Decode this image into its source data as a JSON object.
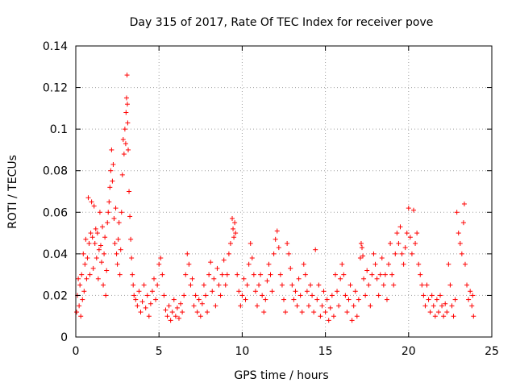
{
  "chart_data": {
    "type": "scatter",
    "title": "Day 315 of 2017, Rate Of TEC Index for receiver pove",
    "xlabel": "GPS time / hours",
    "ylabel": "ROTI / TECUs",
    "xlim": [
      0,
      25
    ],
    "ylim": [
      0,
      0.14
    ],
    "xticks": [
      "0",
      "5",
      "10",
      "15",
      "20",
      "25"
    ],
    "yticks": [
      "0",
      "0.02",
      "0.04",
      "0.06",
      "0.08",
      "0.1",
      "0.12",
      "0.14"
    ],
    "grid": true,
    "marker": "+",
    "color": "#ff0000",
    "series": [
      {
        "points": [
          [
            0.05,
            0.012
          ],
          [
            0.1,
            0.02
          ],
          [
            0.15,
            0.028
          ],
          [
            0.2,
            0.015
          ],
          [
            0.25,
            0.025
          ],
          [
            0.3,
            0.01
          ],
          [
            0.35,
            0.03
          ],
          [
            0.4,
            0.018
          ],
          [
            0.45,
            0.04
          ],
          [
            0.5,
            0.022
          ],
          [
            0.55,
            0.035
          ],
          [
            0.6,
            0.047
          ],
          [
            0.65,
            0.028
          ],
          [
            0.7,
            0.038
          ],
          [
            0.75,
            0.067
          ],
          [
            0.8,
            0.045
          ],
          [
            0.85,
            0.03
          ],
          [
            0.9,
            0.05
          ],
          [
            0.95,
            0.065
          ],
          [
            1.0,
            0.048
          ],
          [
            1.05,
            0.033
          ],
          [
            1.1,
            0.063
          ],
          [
            1.15,
            0.045
          ],
          [
            1.2,
            0.052
          ],
          [
            1.25,
            0.038
          ],
          [
            1.3,
            0.05
          ],
          [
            1.35,
            0.028
          ],
          [
            1.4,
            0.042
          ],
          [
            1.45,
            0.06
          ],
          [
            1.5,
            0.044
          ],
          [
            1.55,
            0.036
          ],
          [
            1.6,
            0.053
          ],
          [
            1.65,
            0.025
          ],
          [
            1.7,
            0.04
          ],
          [
            1.75,
            0.048
          ],
          [
            1.8,
            0.02
          ],
          [
            1.85,
            0.032
          ],
          [
            1.9,
            0.055
          ],
          [
            1.95,
            0.06
          ],
          [
            2.0,
            0.065
          ],
          [
            2.05,
            0.072
          ],
          [
            2.1,
            0.08
          ],
          [
            2.15,
            0.09
          ],
          [
            2.2,
            0.075
          ],
          [
            2.25,
            0.083
          ],
          [
            2.3,
            0.057
          ],
          [
            2.35,
            0.045
          ],
          [
            2.4,
            0.062
          ],
          [
            2.45,
            0.04
          ],
          [
            2.5,
            0.035
          ],
          [
            2.55,
            0.047
          ],
          [
            2.6,
            0.055
          ],
          [
            2.65,
            0.03
          ],
          [
            2.7,
            0.042
          ],
          [
            2.75,
            0.06
          ],
          [
            2.8,
            0.078
          ],
          [
            2.85,
            0.095
          ],
          [
            2.9,
            0.088
          ],
          [
            2.95,
            0.1
          ],
          [
            3.0,
            0.093
          ],
          [
            3.02,
            0.108
          ],
          [
            3.05,
            0.115
          ],
          [
            3.08,
            0.126
          ],
          [
            3.1,
            0.112
          ],
          [
            3.12,
            0.103
          ],
          [
            3.15,
            0.09
          ],
          [
            3.2,
            0.07
          ],
          [
            3.25,
            0.058
          ],
          [
            3.3,
            0.047
          ],
          [
            3.35,
            0.038
          ],
          [
            3.4,
            0.03
          ],
          [
            3.45,
            0.025
          ],
          [
            3.5,
            0.02
          ],
          [
            3.6,
            0.018
          ],
          [
            3.7,
            0.015
          ],
          [
            3.8,
            0.022
          ],
          [
            3.9,
            0.012
          ],
          [
            4.0,
            0.017
          ],
          [
            4.1,
            0.025
          ],
          [
            4.2,
            0.014
          ],
          [
            4.3,
            0.02
          ],
          [
            4.4,
            0.01
          ],
          [
            4.5,
            0.016
          ],
          [
            4.6,
            0.022
          ],
          [
            4.7,
            0.028
          ],
          [
            4.8,
            0.018
          ],
          [
            4.9,
            0.025
          ],
          [
            5.0,
            0.035
          ],
          [
            5.1,
            0.038
          ],
          [
            5.2,
            0.03
          ],
          [
            5.3,
            0.02
          ],
          [
            5.4,
            0.013
          ],
          [
            5.5,
            0.01
          ],
          [
            5.6,
            0.015
          ],
          [
            5.7,
            0.008
          ],
          [
            5.8,
            0.012
          ],
          [
            5.9,
            0.018
          ],
          [
            6.0,
            0.01
          ],
          [
            6.1,
            0.014
          ],
          [
            6.2,
            0.009
          ],
          [
            6.3,
            0.016
          ],
          [
            6.4,
            0.012
          ],
          [
            6.5,
            0.02
          ],
          [
            6.6,
            0.03
          ],
          [
            6.7,
            0.04
          ],
          [
            6.8,
            0.035
          ],
          [
            6.9,
            0.025
          ],
          [
            7.0,
            0.028
          ],
          [
            7.1,
            0.015
          ],
          [
            7.2,
            0.02
          ],
          [
            7.3,
            0.012
          ],
          [
            7.4,
            0.018
          ],
          [
            7.5,
            0.01
          ],
          [
            7.6,
            0.016
          ],
          [
            7.7,
            0.025
          ],
          [
            7.8,
            0.02
          ],
          [
            7.9,
            0.012
          ],
          [
            8.0,
            0.03
          ],
          [
            8.1,
            0.036
          ],
          [
            8.2,
            0.022
          ],
          [
            8.3,
            0.028
          ],
          [
            8.4,
            0.015
          ],
          [
            8.5,
            0.033
          ],
          [
            8.6,
            0.025
          ],
          [
            8.7,
            0.02
          ],
          [
            8.8,
            0.03
          ],
          [
            8.9,
            0.037
          ],
          [
            9.0,
            0.025
          ],
          [
            9.1,
            0.03
          ],
          [
            9.2,
            0.04
          ],
          [
            9.3,
            0.045
          ],
          [
            9.4,
            0.057
          ],
          [
            9.45,
            0.052
          ],
          [
            9.5,
            0.048
          ],
          [
            9.55,
            0.055
          ],
          [
            9.6,
            0.05
          ],
          [
            9.7,
            0.03
          ],
          [
            9.8,
            0.022
          ],
          [
            9.9,
            0.015
          ],
          [
            10.0,
            0.02
          ],
          [
            10.1,
            0.028
          ],
          [
            10.2,
            0.018
          ],
          [
            10.3,
            0.025
          ],
          [
            10.4,
            0.035
          ],
          [
            10.5,
            0.045
          ],
          [
            10.6,
            0.038
          ],
          [
            10.7,
            0.03
          ],
          [
            10.8,
            0.022
          ],
          [
            10.9,
            0.015
          ],
          [
            11.0,
            0.025
          ],
          [
            11.1,
            0.03
          ],
          [
            11.2,
            0.02
          ],
          [
            11.3,
            0.012
          ],
          [
            11.4,
            0.018
          ],
          [
            11.5,
            0.027
          ],
          [
            11.6,
            0.035
          ],
          [
            11.7,
            0.03
          ],
          [
            11.8,
            0.022
          ],
          [
            11.9,
            0.04
          ],
          [
            12.0,
            0.047
          ],
          [
            12.1,
            0.051
          ],
          [
            12.2,
            0.043
          ],
          [
            12.3,
            0.03
          ],
          [
            12.4,
            0.025
          ],
          [
            12.5,
            0.018
          ],
          [
            12.6,
            0.012
          ],
          [
            12.7,
            0.045
          ],
          [
            12.8,
            0.04
          ],
          [
            12.9,
            0.033
          ],
          [
            13.0,
            0.025
          ],
          [
            13.1,
            0.018
          ],
          [
            13.2,
            0.022
          ],
          [
            13.3,
            0.015
          ],
          [
            13.4,
            0.028
          ],
          [
            13.5,
            0.02
          ],
          [
            13.6,
            0.012
          ],
          [
            13.7,
            0.035
          ],
          [
            13.8,
            0.03
          ],
          [
            13.9,
            0.022
          ],
          [
            14.0,
            0.015
          ],
          [
            14.1,
            0.025
          ],
          [
            14.2,
            0.02
          ],
          [
            14.3,
            0.012
          ],
          [
            14.4,
            0.042
          ],
          [
            14.5,
            0.018
          ],
          [
            14.6,
            0.025
          ],
          [
            14.7,
            0.01
          ],
          [
            14.8,
            0.015
          ],
          [
            14.9,
            0.022
          ],
          [
            15.0,
            0.012
          ],
          [
            15.1,
            0.018
          ],
          [
            15.2,
            0.008
          ],
          [
            15.3,
            0.014
          ],
          [
            15.4,
            0.02
          ],
          [
            15.5,
            0.01
          ],
          [
            15.6,
            0.03
          ],
          [
            15.7,
            0.022
          ],
          [
            15.8,
            0.015
          ],
          [
            15.9,
            0.028
          ],
          [
            16.0,
            0.035
          ],
          [
            16.1,
            0.03
          ],
          [
            16.2,
            0.02
          ],
          [
            16.3,
            0.012
          ],
          [
            16.4,
            0.018
          ],
          [
            16.5,
            0.025
          ],
          [
            16.6,
            0.008
          ],
          [
            16.7,
            0.015
          ],
          [
            16.8,
            0.022
          ],
          [
            16.9,
            0.01
          ],
          [
            17.0,
            0.018
          ],
          [
            17.1,
            0.038
          ],
          [
            17.15,
            0.045
          ],
          [
            17.2,
            0.043
          ],
          [
            17.25,
            0.039
          ],
          [
            17.3,
            0.028
          ],
          [
            17.4,
            0.02
          ],
          [
            17.5,
            0.032
          ],
          [
            17.6,
            0.025
          ],
          [
            17.7,
            0.015
          ],
          [
            17.8,
            0.03
          ],
          [
            17.9,
            0.04
          ],
          [
            18.0,
            0.035
          ],
          [
            18.1,
            0.028
          ],
          [
            18.2,
            0.02
          ],
          [
            18.3,
            0.03
          ],
          [
            18.4,
            0.038
          ],
          [
            18.5,
            0.025
          ],
          [
            18.6,
            0.03
          ],
          [
            18.7,
            0.018
          ],
          [
            18.8,
            0.035
          ],
          [
            18.9,
            0.045
          ],
          [
            19.0,
            0.03
          ],
          [
            19.1,
            0.025
          ],
          [
            19.2,
            0.04
          ],
          [
            19.3,
            0.05
          ],
          [
            19.4,
            0.045
          ],
          [
            19.5,
            0.053
          ],
          [
            19.6,
            0.04
          ],
          [
            19.7,
            0.035
          ],
          [
            19.8,
            0.043
          ],
          [
            19.9,
            0.05
          ],
          [
            20.0,
            0.062
          ],
          [
            20.1,
            0.048
          ],
          [
            20.2,
            0.04
          ],
          [
            20.3,
            0.061
          ],
          [
            20.4,
            0.045
          ],
          [
            20.5,
            0.05
          ],
          [
            20.6,
            0.035
          ],
          [
            20.7,
            0.03
          ],
          [
            20.8,
            0.025
          ],
          [
            20.9,
            0.02
          ],
          [
            21.0,
            0.015
          ],
          [
            21.1,
            0.025
          ],
          [
            21.2,
            0.018
          ],
          [
            21.3,
            0.012
          ],
          [
            21.4,
            0.02
          ],
          [
            21.5,
            0.015
          ],
          [
            21.6,
            0.01
          ],
          [
            21.7,
            0.018
          ],
          [
            21.8,
            0.012
          ],
          [
            21.9,
            0.02
          ],
          [
            22.0,
            0.015
          ],
          [
            22.1,
            0.01
          ],
          [
            22.2,
            0.016
          ],
          [
            22.3,
            0.012
          ],
          [
            22.4,
            0.035
          ],
          [
            22.5,
            0.025
          ],
          [
            22.6,
            0.015
          ],
          [
            22.7,
            0.01
          ],
          [
            22.8,
            0.018
          ],
          [
            22.9,
            0.06
          ],
          [
            23.0,
            0.05
          ],
          [
            23.1,
            0.045
          ],
          [
            23.2,
            0.04
          ],
          [
            23.3,
            0.055
          ],
          [
            23.35,
            0.064
          ],
          [
            23.4,
            0.035
          ],
          [
            23.5,
            0.025
          ],
          [
            23.6,
            0.018
          ],
          [
            23.7,
            0.022
          ],
          [
            23.8,
            0.015
          ],
          [
            23.85,
            0.02
          ],
          [
            23.9,
            0.01
          ]
        ]
      }
    ]
  }
}
